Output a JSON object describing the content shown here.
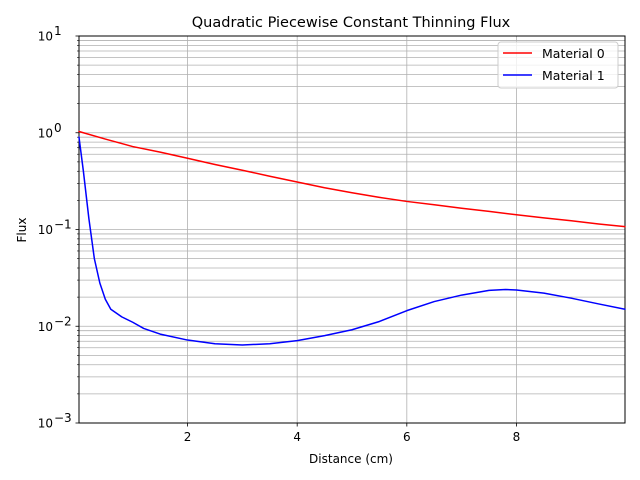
{
  "chart_data": {
    "type": "line",
    "title": "Quadratic Piecewise Constant Thinning Flux",
    "xlabel": "Distance (cm)",
    "ylabel": "Flux",
    "xlim": [
      0.02,
      9.98
    ],
    "ylim": [
      0.001,
      10
    ],
    "yscale": "log",
    "grid": true,
    "grid_minor_y": true,
    "legend_position": "top-right",
    "x_ticks": [
      2,
      4,
      6,
      8
    ],
    "x_tick_labels": [
      "2",
      "4",
      "6",
      "8"
    ],
    "y_ticks": [
      0.001,
      0.01,
      0.1,
      1,
      10
    ],
    "y_tick_labels": [
      {
        "base": "10",
        "exp": "−3"
      },
      {
        "base": "10",
        "exp": "−2"
      },
      {
        "base": "10",
        "exp": "−1"
      },
      {
        "base": "10",
        "exp": "0"
      },
      {
        "base": "10",
        "exp": "1"
      }
    ],
    "series": [
      {
        "name": "Material 0",
        "color": "#ff0000",
        "x": [
          0.02,
          0.5,
          1.0,
          1.5,
          2.0,
          2.5,
          3.0,
          3.5,
          4.0,
          4.5,
          5.0,
          5.5,
          6.0,
          6.5,
          7.0,
          7.5,
          8.0,
          8.5,
          9.0,
          9.5,
          9.98
        ],
        "y": [
          1.03,
          0.86,
          0.72,
          0.63,
          0.545,
          0.47,
          0.41,
          0.355,
          0.31,
          0.27,
          0.24,
          0.215,
          0.195,
          0.18,
          0.166,
          0.154,
          0.142,
          0.132,
          0.123,
          0.114,
          0.107
        ]
      },
      {
        "name": "Material 1",
        "color": "#0000ff",
        "x": [
          0.02,
          0.1,
          0.2,
          0.3,
          0.4,
          0.5,
          0.6,
          0.8,
          1.0,
          1.2,
          1.5,
          2.0,
          2.5,
          3.0,
          3.5,
          4.0,
          4.5,
          5.0,
          5.5,
          6.0,
          6.5,
          7.0,
          7.5,
          7.8,
          8.0,
          8.5,
          9.0,
          9.5,
          9.98
        ],
        "y": [
          0.9,
          0.4,
          0.13,
          0.05,
          0.028,
          0.019,
          0.015,
          0.0125,
          0.011,
          0.0095,
          0.0083,
          0.0072,
          0.0066,
          0.0064,
          0.0066,
          0.0071,
          0.008,
          0.0092,
          0.0112,
          0.0145,
          0.018,
          0.021,
          0.0235,
          0.024,
          0.0237,
          0.022,
          0.0195,
          0.017,
          0.015
        ]
      }
    ]
  }
}
